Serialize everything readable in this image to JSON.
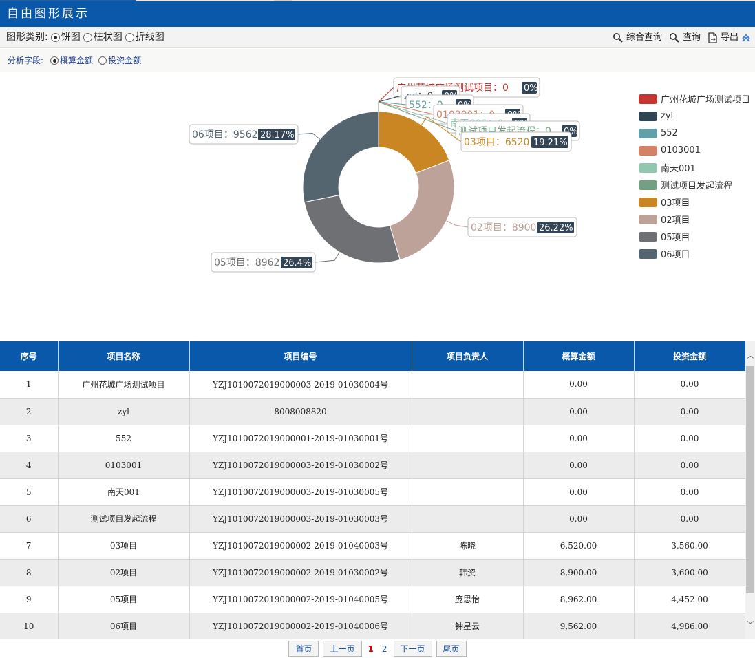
{
  "title": "自由图形展示",
  "toolbar": {
    "chart_type_label": "图形类别:",
    "chart_types": [
      "饼图",
      "柱状图",
      "折线图"
    ],
    "selected": "饼图",
    "actions": {
      "combined_query": "综合查询",
      "query": "查询",
      "export": "导出"
    }
  },
  "fieldbar": {
    "label": "分析字段:",
    "options": [
      "概算金额",
      "投资金额"
    ],
    "selected": "概算金额"
  },
  "chart_data": {
    "type": "pie",
    "categories": [
      "广州花城广场测试项目",
      "zyl",
      "552",
      "0103001",
      "南天001",
      "测试项目发起流程",
      "03项目",
      "02项目",
      "05项目",
      "06项目"
    ],
    "values": [
      0,
      0,
      0,
      0,
      0,
      0,
      6520,
      8900,
      8962,
      9562
    ],
    "percents": [
      "0%",
      "0%",
      "0%",
      "0%",
      "0%",
      "0%",
      "19.21%",
      "26.22%",
      "26.4%",
      "28.17%"
    ],
    "colors": [
      "#c23531",
      "#2f4554",
      "#61a0a8",
      "#d48265",
      "#91c7ae",
      "#749f83",
      "#ca8622",
      "#bda29a",
      "#6e7074",
      "#546570"
    ],
    "legend_position": "right"
  },
  "table": {
    "headers": [
      "序号",
      "项目名称",
      "项目编号",
      "项目负责人",
      "概算金额",
      "投资金额"
    ],
    "rows": [
      [
        "1",
        "广州花城广场测试项目",
        "YZJ1010072019000003-2019-01030004号",
        "",
        "0.00",
        "0.00"
      ],
      [
        "2",
        "zyl",
        "8008008820",
        "",
        "0.00",
        "0.00"
      ],
      [
        "3",
        "552",
        "YZJ1010072019000001-2019-01030001号",
        "",
        "0.00",
        "0.00"
      ],
      [
        "4",
        "0103001",
        "YZJ1010072019000003-2019-01030002号",
        "",
        "0.00",
        "0.00"
      ],
      [
        "5",
        "南天001",
        "YZJ1010072019000003-2019-01030005号",
        "",
        "0.00",
        "0.00"
      ],
      [
        "6",
        "测试项目发起流程",
        "YZJ1010072019000003-2019-01030003号",
        "",
        "0.00",
        "0.00"
      ],
      [
        "7",
        "03项目",
        "YZJ1010072019000002-2019-01040003号",
        "陈晓",
        "6,520.00",
        "3,560.00"
      ],
      [
        "8",
        "02项目",
        "YZJ1010072019000002-2019-01030002号",
        "韩资",
        "8,900.00",
        "3,600.00"
      ],
      [
        "9",
        "05项目",
        "YZJ1010072019000002-2019-01040005号",
        "庞思怡",
        "8,962.00",
        "4,452.00"
      ],
      [
        "10",
        "06项目",
        "YZJ1010072019000002-2019-01040006号",
        "钟星云",
        "9,562.00",
        "4,986.00"
      ]
    ]
  },
  "pager": {
    "first": "首页",
    "prev": "上一页",
    "pages": [
      "1",
      "2"
    ],
    "current": "1",
    "next": "下一页",
    "last": "尾页"
  }
}
